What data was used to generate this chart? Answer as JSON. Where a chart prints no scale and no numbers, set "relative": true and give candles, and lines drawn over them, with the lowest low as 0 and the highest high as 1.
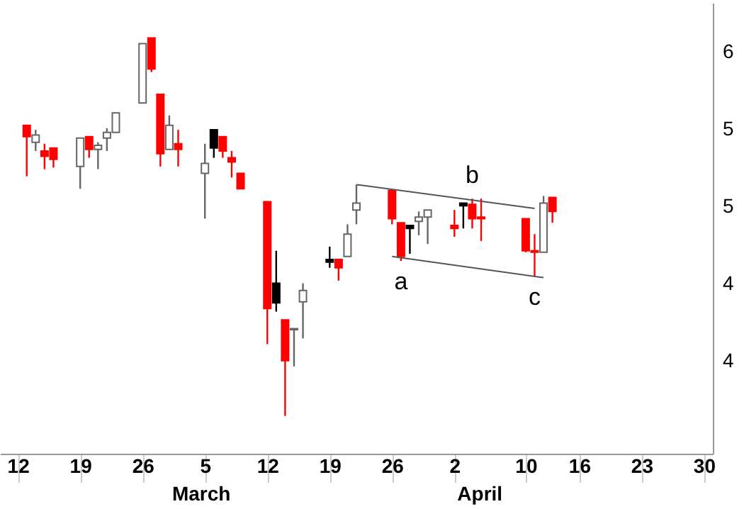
{
  "chart_data": {
    "type": "candlestick",
    "relative": true,
    "x": [
      "--02-13",
      "--02-14",
      "--02-15",
      "--02-16",
      "--02-19",
      "--02-20",
      "--02-21",
      "--02-22",
      "--02-23",
      "--02-26",
      "--02-27",
      "--02-28",
      "--03-01",
      "--03-02",
      "--03-05",
      "--03-06",
      "--03-07",
      "--03-08",
      "--03-09",
      "--03-12",
      "--03-13",
      "--03-14",
      "--03-15",
      "--03-16",
      "--03-19",
      "--03-20",
      "--03-21",
      "--03-22",
      "--03-26",
      "--03-27",
      "--03-28",
      "--03-29",
      "--03-30",
      "--04-02",
      "--04-03",
      "--04-04",
      "--04-05",
      "--04-10",
      "--04-11",
      "--04-12",
      "--04-13"
    ],
    "ohlc": [
      [
        0.769,
        0.769,
        0.634,
        0.739
      ],
      [
        0.724,
        0.757,
        0.701,
        0.743
      ],
      [
        0.701,
        0.72,
        0.653,
        0.687
      ],
      [
        0.709,
        0.709,
        0.657,
        0.679
      ],
      [
        0.66,
        0.735,
        0.601,
        0.735
      ],
      [
        0.739,
        0.739,
        0.683,
        0.705
      ],
      [
        0.705,
        0.724,
        0.653,
        0.716
      ],
      [
        0.735,
        0.761,
        0.701,
        0.75
      ],
      [
        0.75,
        0.802,
        0.75,
        0.802
      ],
      [
        0.828,
        0.985,
        0.828,
        0.985
      ],
      [
        1,
        1,
        0.91,
        0.918
      ],
      [
        0.851,
        0.851,
        0.66,
        0.694
      ],
      [
        0.705,
        0.795,
        0.705,
        0.769
      ],
      [
        0.72,
        0.757,
        0.66,
        0.705
      ],
      [
        0.642,
        0.72,
        0.522,
        0.668
      ],
      [
        0.757,
        0.757,
        0.683,
        0.709
      ],
      [
        0.739,
        0.739,
        0.683,
        0.701
      ],
      [
        0.683,
        0.701,
        0.631,
        0.672
      ],
      [
        0.642,
        0.642,
        0.601,
        0.601
      ],
      [
        0.567,
        0.567,
        0.19,
        0.284
      ],
      [
        0.351,
        0.437,
        0.276,
        0.299
      ],
      [
        0.254,
        0.254,
        0,
        0.146
      ],
      [
        0.228,
        0.231,
        0.131,
        0.231
      ],
      [
        0.302,
        0.351,
        0.205,
        0.332
      ],
      [
        0.414,
        0.448,
        0.392,
        0.407
      ],
      [
        0.414,
        0.414,
        0.358,
        0.392
      ],
      [
        0.422,
        0.507,
        0.422,
        0.481
      ],
      [
        0.545,
        0.612,
        0.507,
        0.563
      ],
      [
        0.597,
        0.597,
        0.507,
        0.522
      ],
      [
        0.511,
        0.511,
        0.41,
        0.422
      ],
      [
        0.496,
        0.504,
        0.429,
        0.504
      ],
      [
        0.515,
        0.541,
        0.478,
        0.526
      ],
      [
        0.526,
        0.545,
        0.455,
        0.545
      ],
      [
        0.504,
        0.545,
        0.474,
        0.496
      ],
      [
        0.563,
        0.563,
        0.496,
        0.556
      ],
      [
        0.56,
        0.575,
        0.496,
        0.522
      ],
      [
        0.526,
        0.575,
        0.463,
        0.522
      ],
      [
        0.522,
        0.522,
        0.433,
        0.437
      ],
      [
        0.437,
        0.481,
        0.369,
        0.433
      ],
      [
        0.433,
        0.582,
        0.433,
        0.563
      ],
      [
        0.578,
        0.578,
        0.511,
        0.541
      ]
    ],
    "colors": [
      "#ff0000",
      "#ffffff",
      "#ff0000",
      "#ff0000",
      "#ffffff",
      "#ff0000",
      "#ffffff",
      "#ffffff",
      "#ffffff",
      "#ffffff",
      "#ff0000",
      "#ff0000",
      "#ffffff",
      "#ff0000",
      "#ffffff",
      "#000000",
      "#ff0000",
      "#ff0000",
      "#ff0000",
      "#ff0000",
      "#000000",
      "#ff0000",
      "#ffffff",
      "#ffffff",
      "#000000",
      "#ff0000",
      "#ffffff",
      "#ffffff",
      "#ff0000",
      "#ff0000",
      "#000000",
      "#ffffff",
      "#ffffff",
      "#ff0000",
      "#000000",
      "#ff0000",
      "#ff0000",
      "#ff0000",
      "#ff0000",
      "#ffffff",
      "#ff0000"
    ],
    "xlim": [
      "--02-10",
      "--05-01"
    ],
    "xticks": [
      {
        "value": "--02-12",
        "label": "12"
      },
      {
        "value": "--02-19",
        "label": "19"
      },
      {
        "value": "--02-26",
        "label": "26"
      },
      {
        "value": "--03-05",
        "label": "5"
      },
      {
        "value": "--03-12",
        "label": "12"
      },
      {
        "value": "--03-19",
        "label": "19"
      },
      {
        "value": "--03-26",
        "label": "26"
      },
      {
        "value": "--04-02",
        "label": "2"
      },
      {
        "value": "--04-10",
        "label": "10"
      },
      {
        "value": "--04-16",
        "label": "16"
      },
      {
        "value": "--04-23",
        "label": "23"
      },
      {
        "value": "--04-30",
        "label": "30"
      }
    ],
    "series": [
      {
        "type": "line",
        "color": "#555555",
        "x": [
          "--03-22",
          "--04-11"
        ],
        "values": [
          0.612,
          0.549
        ]
      },
      {
        "type": "line",
        "color": "#555555",
        "x": [
          "--03-26",
          "--04-12"
        ],
        "values": [
          0.422,
          0.366
        ]
      }
    ],
    "annotations": [
      {
        "text": "a",
        "x": "--03-27",
        "y": 0.41
      },
      {
        "text": "b",
        "x": "--04-04",
        "y": 0.575
      },
      {
        "text": "c",
        "x": "--04-11",
        "y": 0.369
      },
      "March",
      "April",
      "6",
      "5",
      "5",
      "4",
      "4"
    ]
  }
}
